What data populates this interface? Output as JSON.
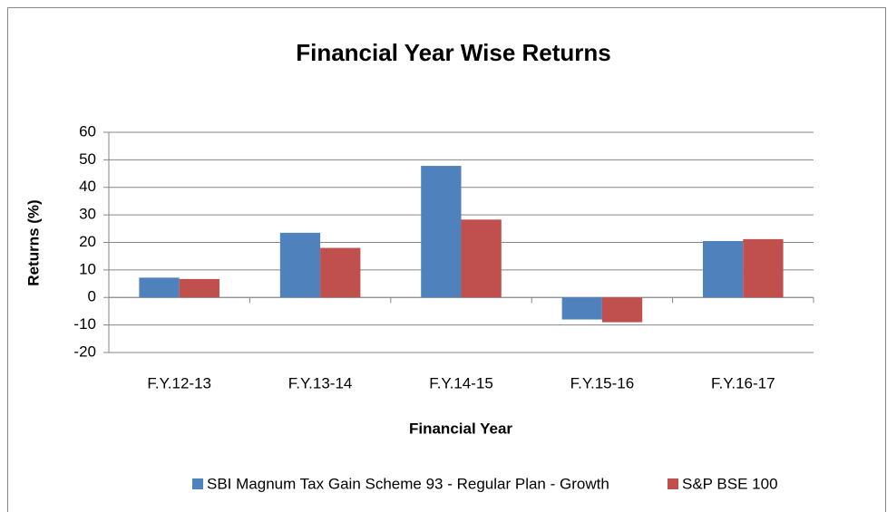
{
  "chart_data": {
    "type": "bar",
    "title": "Financial Year Wise Returns",
    "x_label": "Financial Year",
    "y_label": "Returns (%)",
    "categories": [
      "F.Y.12-13",
      "F.Y.13-14",
      "F.Y.14-15",
      "F.Y.15-16",
      "F.Y.16-17"
    ],
    "series": [
      {
        "name": "SBI Magnum Tax Gain Scheme 93 - Regular Plan - Growth",
        "color": "#4f81bd",
        "values": [
          7.2,
          23.5,
          47.8,
          -8,
          20.5
        ]
      },
      {
        "name": "S&P BSE 100",
        "color": "#c0504d",
        "values": [
          6.7,
          18,
          28.3,
          -9,
          21.2
        ]
      }
    ],
    "ylim": [
      -20,
      60
    ],
    "yticks": [
      -20,
      -10,
      0,
      10,
      20,
      30,
      40,
      50,
      60
    ],
    "grid": true,
    "legend": "bottom"
  }
}
